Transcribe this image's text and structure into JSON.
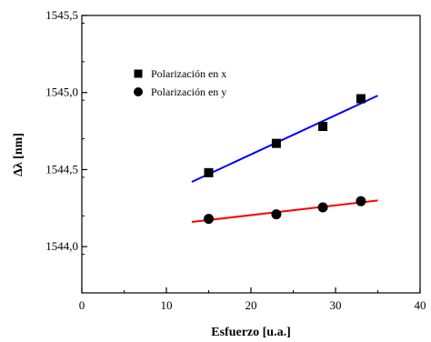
{
  "chart_data": {
    "type": "scatter",
    "xlabel": "Esfuerzo [u.a.]",
    "ylabel": "Δλ [nm]",
    "xlim": [
      0,
      40
    ],
    "ylim": [
      1543.7,
      1545.5
    ],
    "x_ticks": [
      0,
      10,
      20,
      30,
      40
    ],
    "x_tick_labels": [
      "0",
      "10",
      "20",
      "30",
      "40"
    ],
    "y_ticks": [
      1544.0,
      1544.5,
      1545.0,
      1545.5
    ],
    "y_tick_labels": [
      "1544,0",
      "1544,5",
      "1545,0",
      "1545,5"
    ],
    "grid": false,
    "legend_position": "top-left",
    "series": [
      {
        "name": "Polarización en x",
        "marker": "square",
        "points": [
          {
            "x": 15.0,
            "y": 1544.48
          },
          {
            "x": 23.0,
            "y": 1544.67
          },
          {
            "x": 28.5,
            "y": 1544.78
          },
          {
            "x": 33.0,
            "y": 1544.96
          }
        ],
        "fit": {
          "x": [
            13.0,
            35.0
          ],
          "y": [
            1544.42,
            1544.98
          ]
        },
        "fit_color": "#0000ff"
      },
      {
        "name": "Polarización en y",
        "marker": "circle",
        "points": [
          {
            "x": 15.0,
            "y": 1544.18
          },
          {
            "x": 23.0,
            "y": 1544.21
          },
          {
            "x": 28.5,
            "y": 1544.255
          },
          {
            "x": 33.0,
            "y": 1544.295
          }
        ],
        "fit": {
          "x": [
            13.0,
            35.0
          ],
          "y": [
            1544.16,
            1544.3
          ]
        },
        "fit_color": "#ff0000"
      }
    ]
  }
}
